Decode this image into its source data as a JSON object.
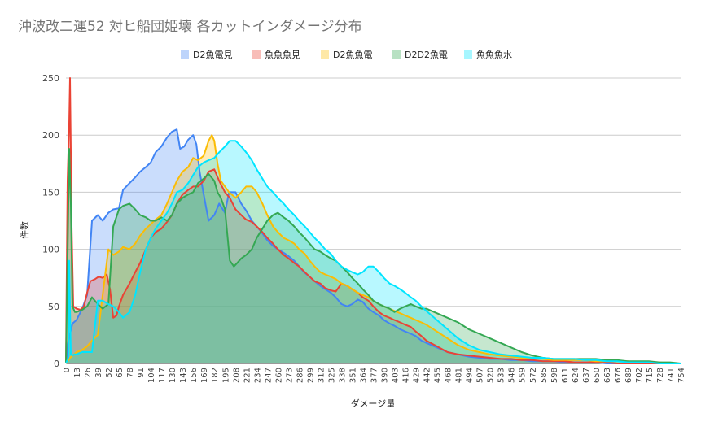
{
  "chart_data": {
    "type": "area",
    "title": "沖波改二運52 対ヒ船団姫壊 各カットインダメージ分布",
    "xlabel": "ダメージ量",
    "ylabel": "件数",
    "ylim": [
      0,
      250
    ],
    "xlim": [
      0,
      754
    ],
    "y_ticks": [
      0,
      50,
      100,
      150,
      200,
      250
    ],
    "x_ticks": [
      0,
      13,
      26,
      39,
      52,
      65,
      78,
      91,
      104,
      117,
      130,
      143,
      156,
      169,
      182,
      195,
      208,
      221,
      234,
      247,
      260,
      273,
      286,
      299,
      312,
      325,
      338,
      351,
      364,
      377,
      390,
      403,
      416,
      429,
      442,
      455,
      468,
      481,
      494,
      507,
      520,
      533,
      546,
      559,
      572,
      585,
      598,
      611,
      624,
      637,
      650,
      663,
      676,
      689,
      702,
      715,
      728,
      741,
      754
    ],
    "grid": true,
    "legend_position": "top",
    "series": [
      {
        "name": "D2魚電見",
        "color": "#4285f4",
        "x": [
          0,
          3,
          8,
          13,
          20,
          26,
          32,
          39,
          45,
          52,
          58,
          65,
          70,
          78,
          85,
          91,
          98,
          104,
          110,
          117,
          124,
          130,
          136,
          140,
          145,
          150,
          156,
          160,
          164,
          169,
          175,
          182,
          188,
          195,
          200,
          208,
          215,
          221,
          228,
          234,
          240,
          247,
          254,
          260,
          267,
          273,
          280,
          286,
          292,
          299,
          305,
          312,
          318,
          325,
          331,
          338,
          345,
          351,
          358,
          364,
          371,
          377,
          384,
          390,
          397,
          403,
          410,
          416,
          423,
          429,
          436,
          442,
          455,
          468,
          481,
          494,
          507,
          520,
          533,
          546,
          559,
          572,
          585,
          598,
          611,
          624,
          637,
          650,
          663,
          676,
          689,
          702,
          715,
          728,
          741,
          754
        ],
        "y": [
          0,
          20,
          35,
          38,
          48,
          60,
          125,
          130,
          125,
          132,
          135,
          136,
          152,
          158,
          163,
          168,
          172,
          176,
          185,
          190,
          198,
          203,
          205,
          188,
          190,
          196,
          200,
          192,
          168,
          148,
          125,
          130,
          140,
          132,
          150,
          150,
          140,
          134,
          125,
          120,
          115,
          108,
          103,
          100,
          97,
          94,
          90,
          85,
          80,
          76,
          72,
          68,
          65,
          62,
          58,
          52,
          50,
          52,
          56,
          54,
          48,
          45,
          42,
          38,
          35,
          33,
          30,
          28,
          26,
          24,
          20,
          18,
          14,
          10,
          8,
          6,
          5,
          4,
          4,
          3,
          3,
          2,
          2,
          2,
          1,
          1,
          1,
          1,
          0,
          0,
          0,
          0,
          0,
          0,
          0,
          0
        ]
      },
      {
        "name": "魚魚魚見",
        "color": "#ea4335",
        "x": [
          0,
          2,
          4,
          5,
          7,
          9,
          13,
          18,
          22,
          26,
          30,
          36,
          40,
          45,
          50,
          54,
          58,
          62,
          65,
          70,
          78,
          85,
          91,
          98,
          104,
          110,
          117,
          124,
          130,
          136,
          143,
          150,
          156,
          162,
          169,
          175,
          182,
          188,
          195,
          201,
          208,
          215,
          221,
          228,
          234,
          241,
          247,
          254,
          260,
          267,
          273,
          280,
          286,
          293,
          299,
          305,
          312,
          318,
          325,
          331,
          338,
          345,
          351,
          358,
          364,
          371,
          377,
          384,
          390,
          397,
          403,
          410,
          416,
          423,
          429,
          436,
          442,
          455,
          468,
          481,
          494,
          507,
          520,
          533,
          546,
          559,
          572,
          585,
          598,
          611,
          624,
          637,
          650,
          663,
          676,
          689,
          702,
          715,
          728,
          741,
          754
        ],
        "y": [
          0,
          160,
          210,
          250,
          120,
          50,
          48,
          47,
          50,
          62,
          72,
          74,
          76,
          75,
          78,
          65,
          40,
          42,
          50,
          60,
          70,
          80,
          88,
          100,
          110,
          115,
          118,
          124,
          130,
          140,
          148,
          152,
          155,
          155,
          160,
          168,
          170,
          160,
          150,
          145,
          135,
          130,
          126,
          124,
          120,
          115,
          110,
          105,
          100,
          95,
          92,
          88,
          85,
          80,
          76,
          72,
          70,
          66,
          64,
          63,
          70,
          68,
          65,
          62,
          58,
          55,
          50,
          45,
          42,
          40,
          38,
          36,
          34,
          32,
          28,
          24,
          20,
          15,
          10,
          8,
          7,
          6,
          5,
          4,
          4,
          3,
          3,
          2,
          2,
          2,
          1,
          1,
          1,
          1,
          0,
          0,
          0,
          0,
          0,
          0,
          0
        ]
      },
      {
        "name": "D2魚魚電",
        "color": "#fbbc04",
        "x": [
          0,
          5,
          10,
          13,
          20,
          26,
          32,
          39,
          45,
          52,
          58,
          65,
          70,
          78,
          85,
          91,
          98,
          104,
          110,
          117,
          124,
          130,
          136,
          143,
          150,
          156,
          162,
          169,
          175,
          179,
          182,
          186,
          190,
          195,
          200,
          208,
          215,
          221,
          228,
          234,
          241,
          247,
          254,
          260,
          267,
          273,
          280,
          286,
          293,
          299,
          305,
          312,
          318,
          325,
          331,
          338,
          345,
          351,
          358,
          364,
          371,
          377,
          384,
          390,
          397,
          403,
          410,
          416,
          423,
          429,
          436,
          442,
          455,
          468,
          481,
          494,
          507,
          520,
          533,
          546,
          559,
          572,
          585,
          598,
          611,
          624,
          637,
          650,
          663,
          676,
          689,
          702,
          715,
          728,
          741,
          754
        ],
        "y": [
          0,
          5,
          8,
          10,
          12,
          15,
          20,
          25,
          60,
          100,
          95,
          98,
          102,
          100,
          105,
          112,
          118,
          122,
          126,
          130,
          140,
          150,
          160,
          168,
          172,
          180,
          178,
          182,
          195,
          200,
          195,
          175,
          160,
          155,
          150,
          145,
          150,
          155,
          155,
          150,
          140,
          130,
          120,
          115,
          110,
          108,
          105,
          100,
          96,
          90,
          85,
          80,
          78,
          76,
          74,
          70,
          68,
          65,
          62,
          60,
          58,
          55,
          52,
          50,
          48,
          46,
          44,
          42,
          40,
          38,
          36,
          34,
          28,
          22,
          16,
          12,
          10,
          8,
          7,
          6,
          5,
          5,
          4,
          3,
          3,
          3,
          3,
          2,
          2,
          2,
          2,
          1,
          1,
          1,
          0,
          0
        ]
      },
      {
        "name": "D2D2魚電",
        "color": "#34a853",
        "x": [
          0,
          4,
          6,
          8,
          11,
          13,
          20,
          26,
          32,
          39,
          45,
          52,
          58,
          65,
          70,
          78,
          85,
          91,
          98,
          104,
          110,
          117,
          124,
          130,
          136,
          143,
          150,
          156,
          162,
          169,
          175,
          182,
          186,
          190,
          195,
          201,
          206,
          210,
          215,
          221,
          228,
          234,
          241,
          247,
          254,
          260,
          267,
          273,
          280,
          286,
          293,
          299,
          305,
          312,
          318,
          325,
          331,
          338,
          345,
          351,
          358,
          364,
          371,
          377,
          384,
          390,
          397,
          403,
          410,
          416,
          423,
          429,
          436,
          442,
          455,
          468,
          481,
          494,
          507,
          520,
          533,
          546,
          559,
          572,
          585,
          598,
          611,
          624,
          637,
          650,
          663,
          676,
          689,
          702,
          715,
          728,
          741,
          754
        ],
        "y": [
          0,
          188,
          140,
          50,
          45,
          45,
          47,
          50,
          58,
          52,
          48,
          52,
          120,
          135,
          138,
          140,
          135,
          130,
          128,
          125,
          125,
          128,
          125,
          130,
          140,
          145,
          148,
          150,
          158,
          162,
          166,
          160,
          150,
          145,
          135,
          90,
          85,
          88,
          92,
          95,
          100,
          110,
          118,
          125,
          130,
          132,
          128,
          125,
          120,
          115,
          110,
          105,
          100,
          98,
          95,
          92,
          90,
          85,
          80,
          75,
          70,
          65,
          60,
          55,
          52,
          50,
          48,
          45,
          48,
          50,
          52,
          50,
          48,
          48,
          44,
          40,
          36,
          30,
          26,
          22,
          18,
          14,
          10,
          7,
          5,
          4,
          4,
          4,
          4,
          4,
          3,
          3,
          2,
          2,
          2,
          1,
          1,
          0
        ]
      },
      {
        "name": "魚魚魚水",
        "color": "#00e5ff",
        "x": [
          0,
          3,
          4,
          6,
          8,
          10,
          13,
          20,
          26,
          32,
          39,
          45,
          52,
          58,
          65,
          70,
          78,
          85,
          91,
          98,
          104,
          110,
          117,
          124,
          130,
          136,
          143,
          150,
          156,
          162,
          169,
          175,
          182,
          188,
          195,
          201,
          208,
          215,
          221,
          228,
          234,
          241,
          247,
          254,
          260,
          267,
          273,
          280,
          286,
          293,
          299,
          305,
          312,
          318,
          325,
          331,
          338,
          345,
          351,
          358,
          364,
          371,
          377,
          384,
          390,
          397,
          403,
          410,
          416,
          423,
          429,
          436,
          442,
          455,
          468,
          481,
          494,
          507,
          520,
          533,
          546,
          559,
          572,
          585,
          598,
          611,
          624,
          637,
          650,
          663,
          676,
          689,
          702,
          715,
          728,
          741,
          754
        ],
        "y": [
          0,
          5,
          90,
          8,
          7,
          8,
          8,
          10,
          10,
          10,
          55,
          55,
          52,
          50,
          45,
          40,
          45,
          60,
          80,
          100,
          110,
          118,
          125,
          132,
          140,
          150,
          152,
          158,
          165,
          172,
          176,
          178,
          180,
          185,
          190,
          195,
          195,
          190,
          185,
          178,
          170,
          162,
          155,
          150,
          145,
          140,
          135,
          130,
          125,
          120,
          115,
          110,
          105,
          100,
          96,
          90,
          85,
          82,
          80,
          78,
          80,
          85,
          85,
          80,
          75,
          70,
          68,
          65,
          62,
          58,
          55,
          50,
          46,
          38,
          30,
          22,
          16,
          12,
          10,
          8,
          7,
          6,
          5,
          5,
          4,
          4,
          4,
          3,
          3,
          2,
          2,
          1,
          1,
          1,
          0,
          0,
          0
        ]
      }
    ]
  }
}
